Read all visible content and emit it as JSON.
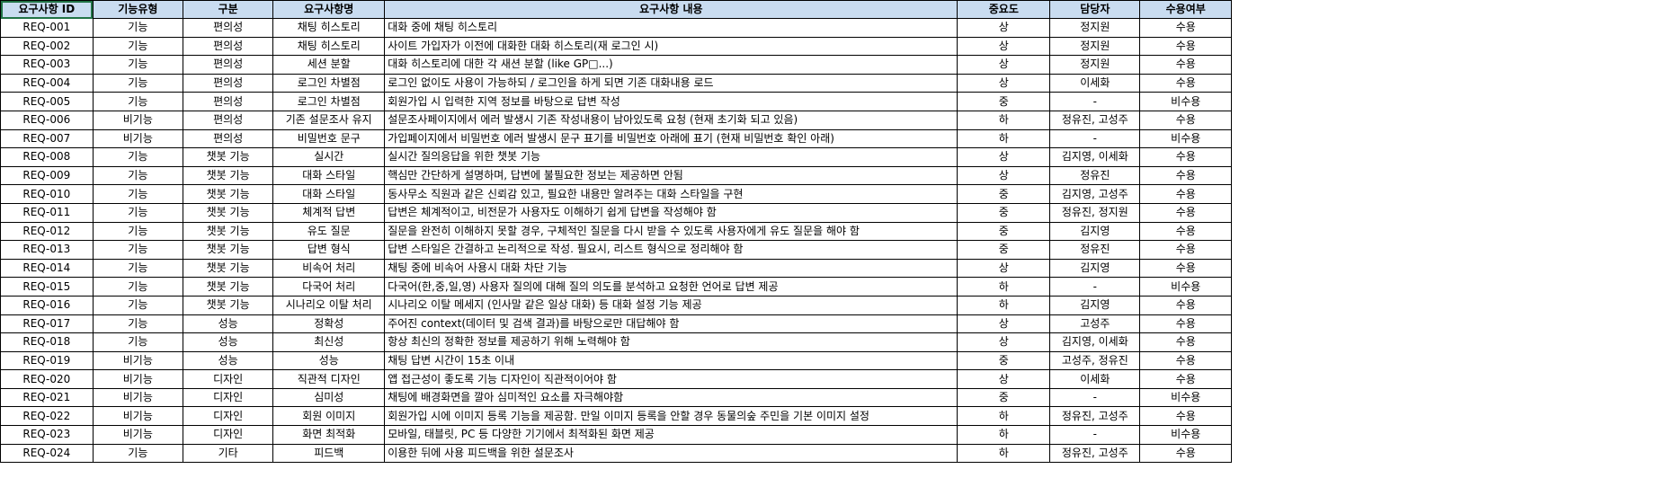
{
  "headers": [
    "요구사항 ID",
    "기능유형",
    "구분",
    "요구사항명",
    "요구사항 내용",
    "중요도",
    "담당자",
    "수용여부"
  ],
  "rows": [
    [
      "REQ-001",
      "기능",
      "편의성",
      "채팅 히스토리",
      "대화 중에 채팅 히스토리",
      "상",
      "정지원",
      "수용"
    ],
    [
      "REQ-002",
      "기능",
      "편의성",
      "채팅 히스토리",
      "사이트 가입자가 이전에 대화한 대화 히스토리(재 로그인 시)",
      "상",
      "정지원",
      "수용"
    ],
    [
      "REQ-003",
      "기능",
      "편의성",
      "세션 분할",
      "대화 히스토리에 대한 각 새션 분할 (like GP□...)",
      "상",
      "정지원",
      "수용"
    ],
    [
      "REQ-004",
      "기능",
      "편의성",
      "로그인 차별점",
      "로그인 없이도 사용이 가능하되 / 로그인을 하게 되면 기존 대화내용 로드",
      "상",
      "이세화",
      "수용"
    ],
    [
      "REQ-005",
      "기능",
      "편의성",
      "로그인 차별점",
      "회원가입 시 입력한 지역 정보를 바탕으로 답변 작성",
      "중",
      "-",
      "비수용"
    ],
    [
      "REQ-006",
      "비기능",
      "편의성",
      "기존 설문조사 유지",
      "설문조사페이지에서 에러 발생시 기존 작성내용이 남아있도록 요청 (현재 초기화 되고 있음)",
      "하",
      "정유진, 고성주",
      "수용"
    ],
    [
      "REQ-007",
      "비기능",
      "편의성",
      "비밀번호 문구",
      "가입페이지에서 비밀번호 에러 발생시 문구 표기를 비밀번호 아래에 표기 (현재 비밀번호 확인 아래)",
      "하",
      "-",
      "비수용"
    ],
    [
      "REQ-008",
      "기능",
      "챗봇 기능",
      "실시간",
      "실시간 질의응답을 위한 챗봇 기능",
      "상",
      "김지영, 이세화",
      "수용"
    ],
    [
      "REQ-009",
      "기능",
      "챗봇 기능",
      "대화 스타일",
      "핵심만 간단하게 설명하며, 답변에 불필요한 정보는 제공하면 안됨",
      "상",
      "정유진",
      "수용"
    ],
    [
      "REQ-010",
      "기능",
      "챗봇 기능",
      "대화 스타일",
      "동사무소 직원과 같은 신뢰감 있고, 필요한 내용만 알려주는 대화 스타일을 구현",
      "중",
      "김지영, 고성주",
      "수용"
    ],
    [
      "REQ-011",
      "기능",
      "챗봇 기능",
      "체계적 답변",
      "답변은 체계적이고, 비전문가 사용자도 이해하기 쉽게 답변을 작성해야 함",
      "중",
      "정유진, 정지원",
      "수용"
    ],
    [
      "REQ-012",
      "기능",
      "챗봇 기능",
      "유도 질문",
      "질문을 완전히 이해하지 못할 경우, 구체적인 질문을 다시 받을 수 있도록 사용자에게 유도 질문을 해야 함",
      "중",
      "김지영",
      "수용"
    ],
    [
      "REQ-013",
      "기능",
      "챗봇 기능",
      "답변 형식",
      "답변 스타일은 간결하고 논리적으로 작성. 필요시, 리스트 형식으로 정리해야 함",
      "중",
      "정유진",
      "수용"
    ],
    [
      "REQ-014",
      "기능",
      "챗봇 기능",
      "비속어 처리",
      "채팅 중에 비속어 사용시 대화 차단 기능",
      "상",
      "김지영",
      "수용"
    ],
    [
      "REQ-015",
      "기능",
      "챗봇 기능",
      "다국어 처리",
      "다국어(한,중,일,영) 사용자 질의에 대해 질의 의도를 분석하고 요청한 언어로 답변 제공",
      "하",
      "-",
      "비수용"
    ],
    [
      "REQ-016",
      "기능",
      "챗봇 기능",
      "시나리오 이탈 처리",
      "시나리오 이탈 메세지 (인사말 같은 일상 대화) 등 대화 설정 기능 제공",
      "하",
      "김지영",
      "수용"
    ],
    [
      "REQ-017",
      "기능",
      "성능",
      "정확성",
      "주어진 context(데이터 및 검색 결과)를 바탕으로만 대답해야 함",
      "상",
      "고성주",
      "수용"
    ],
    [
      "REQ-018",
      "기능",
      "성능",
      "최신성",
      "항상 최신의 정확한 정보를 제공하기 위해 노력해야 함",
      "상",
      "김지영, 이세화",
      "수용"
    ],
    [
      "REQ-019",
      "비기능",
      "성능",
      "성능",
      "채팅 답변 시간이 15초 이내",
      "중",
      "고성주, 정유진",
      "수용"
    ],
    [
      "REQ-020",
      "비기능",
      "디자인",
      "직관적 디자인",
      "앱 접근성이 좋도록 기능 디자인이 직관적이어야 함",
      "상",
      "이세화",
      "수용"
    ],
    [
      "REQ-021",
      "비기능",
      "디자인",
      "심미성",
      "채팅에 배경화면을 깔아 심미적인 요소를 자극해야함",
      "중",
      "-",
      "비수용"
    ],
    [
      "REQ-022",
      "비기능",
      "디자인",
      "회원 이미지",
      "회원가입 시에 이미지 등록 기능을 제공함. 만일 이미지 등록을 안할 경우 동물의숲 주민을 기본 이미지 설정",
      "하",
      "정유진, 고성주",
      "수용"
    ],
    [
      "REQ-023",
      "비기능",
      "디자인",
      "화면 최적화",
      "모바일, 태블릿, PC 등 다양한 기기에서 최적화된 화면 제공",
      "하",
      "-",
      "비수용"
    ],
    [
      "REQ-024",
      "기능",
      "기타",
      "피드백",
      "이용한 뒤에 사용 피드백을 위한 설문조사",
      "하",
      "정유진, 고성주",
      "수용"
    ]
  ]
}
